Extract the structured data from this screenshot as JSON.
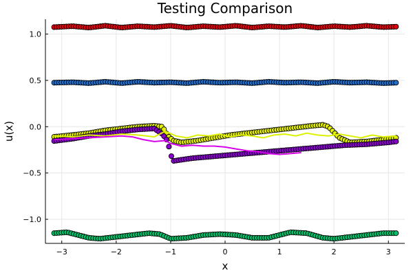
{
  "chart_data": {
    "type": "scatter",
    "title": "Testing Comparison",
    "xlabel": "x",
    "ylabel": "u(x)",
    "xlim": [
      -3.3,
      3.3
    ],
    "ylim": [
      -1.26,
      1.16
    ],
    "xticks": [
      -3,
      -2,
      -1,
      0,
      1,
      2,
      3
    ],
    "xtick_labels": [
      "−3",
      "−2",
      "−1",
      "0",
      "1",
      "2",
      "3"
    ],
    "yticks": [
      -1.0,
      -0.5,
      0.0,
      0.5,
      1.0
    ],
    "ytick_labels": [
      "−1.0",
      "−0.5",
      "0.0",
      "0.5",
      "1.0"
    ],
    "grid": true,
    "legend": "none",
    "series": [
      {
        "kind": "scatter",
        "color": "#e8000b",
        "x": [
          -3.14,
          -2.8,
          -2.5,
          -2.2,
          -1.9,
          -1.6,
          -1.3,
          -1.0,
          -0.7,
          -0.4,
          -0.1,
          0.2,
          0.5,
          0.8,
          1.1,
          1.4,
          1.7,
          2.0,
          2.3,
          2.6,
          2.9,
          3.14
        ],
        "y": [
          1.075,
          1.085,
          1.07,
          1.09,
          1.07,
          1.085,
          1.075,
          1.09,
          1.07,
          1.085,
          1.075,
          1.09,
          1.07,
          1.085,
          1.075,
          1.09,
          1.07,
          1.085,
          1.075,
          1.09,
          1.075,
          1.08
        ]
      },
      {
        "kind": "scatter",
        "color": "#1f6fd1",
        "x": [
          -3.14,
          -2.8,
          -2.5,
          -2.2,
          -1.9,
          -1.6,
          -1.3,
          -1.0,
          -0.7,
          -0.4,
          -0.1,
          0.2,
          0.5,
          0.8,
          1.1,
          1.4,
          1.7,
          2.0,
          2.3,
          2.6,
          2.9,
          3.14
        ],
        "y": [
          0.475,
          0.48,
          0.47,
          0.485,
          0.47,
          0.485,
          0.475,
          0.48,
          0.47,
          0.485,
          0.475,
          0.48,
          0.47,
          0.485,
          0.475,
          0.48,
          0.47,
          0.485,
          0.475,
          0.48,
          0.47,
          0.475
        ]
      },
      {
        "kind": "scatter",
        "color": "#e5f000",
        "x": [
          -3.14,
          -2.8,
          -2.5,
          -2.2,
          -1.9,
          -1.6,
          -1.3,
          -1.15,
          -1.05,
          -0.95,
          -0.8,
          -0.5,
          -0.2,
          0.1,
          0.4,
          0.7,
          1.0,
          1.3,
          1.6,
          1.8,
          1.9,
          2.1,
          2.3,
          2.6,
          2.9,
          3.14
        ],
        "y": [
          -0.11,
          -0.09,
          -0.07,
          -0.04,
          -0.02,
          0.0,
          0.01,
          0.0,
          -0.1,
          -0.15,
          -0.17,
          -0.15,
          -0.12,
          -0.09,
          -0.07,
          -0.05,
          -0.03,
          -0.01,
          0.01,
          0.02,
          0.0,
          -0.12,
          -0.17,
          -0.16,
          -0.14,
          -0.12
        ]
      },
      {
        "kind": "scatter",
        "color": "#8b00d1",
        "x": [
          -3.14,
          -2.8,
          -2.5,
          -2.2,
          -1.9,
          -1.6,
          -1.3,
          -1.15,
          -1.05,
          -1.02,
          -1.0,
          -0.95,
          -0.6,
          -0.2,
          0.2,
          0.6,
          1.0,
          1.4,
          1.8,
          2.2,
          2.6,
          3.0,
          3.14
        ],
        "y": [
          -0.155,
          -0.13,
          -0.1,
          -0.08,
          -0.05,
          -0.03,
          -0.02,
          -0.08,
          -0.16,
          -0.25,
          -0.3,
          -0.37,
          -0.34,
          -0.32,
          -0.3,
          -0.28,
          -0.26,
          -0.24,
          -0.22,
          -0.2,
          -0.19,
          -0.17,
          -0.16
        ]
      },
      {
        "kind": "scatter",
        "color": "#00c36a",
        "x": [
          -3.14,
          -2.9,
          -2.7,
          -2.5,
          -2.3,
          -2.0,
          -1.7,
          -1.4,
          -1.2,
          -1.0,
          -0.7,
          -0.4,
          -0.1,
          0.2,
          0.5,
          0.8,
          1.0,
          1.2,
          1.5,
          1.8,
          2.0,
          2.3,
          2.6,
          2.9,
          3.14
        ],
        "y": [
          -1.15,
          -1.14,
          -1.17,
          -1.2,
          -1.21,
          -1.19,
          -1.17,
          -1.15,
          -1.16,
          -1.21,
          -1.2,
          -1.17,
          -1.16,
          -1.17,
          -1.2,
          -1.2,
          -1.17,
          -1.14,
          -1.15,
          -1.2,
          -1.21,
          -1.19,
          -1.17,
          -1.15,
          -1.15
        ]
      },
      {
        "kind": "line",
        "color": "#dcf000",
        "x": [
          -3.14,
          -2.8,
          -2.5,
          -2.2,
          -1.9,
          -1.6,
          -1.3,
          -1.1,
          -0.9,
          -0.7,
          -0.5,
          -0.3,
          -0.1,
          0.1,
          0.3,
          0.5,
          0.7,
          0.9,
          1.1,
          1.3,
          1.5,
          1.7,
          1.9,
          2.1,
          2.3,
          2.5,
          2.7,
          2.9,
          3.14
        ],
        "y": [
          -0.1,
          -0.11,
          -0.09,
          -0.1,
          -0.08,
          -0.09,
          -0.11,
          -0.05,
          -0.1,
          -0.12,
          -0.09,
          -0.1,
          -0.08,
          -0.11,
          -0.09,
          -0.1,
          -0.12,
          -0.09,
          -0.08,
          -0.1,
          -0.07,
          -0.09,
          -0.1,
          -0.08,
          -0.1,
          -0.12,
          -0.09,
          -0.11,
          -0.1
        ]
      },
      {
        "kind": "line",
        "color": "#d400e8",
        "x": [
          -3.14,
          -2.8,
          -2.5,
          -2.2,
          -1.9,
          -1.7,
          -1.5,
          -1.3,
          -1.1,
          -1.0,
          -0.8,
          -0.6,
          -0.4,
          -0.2,
          0.0,
          0.2,
          0.4,
          0.6,
          0.8,
          1.0,
          1.2,
          1.4
        ],
        "y": [
          -0.14,
          -0.13,
          -0.12,
          -0.11,
          -0.1,
          -0.11,
          -0.14,
          -0.16,
          -0.15,
          -0.18,
          -0.21,
          -0.2,
          -0.21,
          -0.21,
          -0.22,
          -0.24,
          -0.26,
          -0.27,
          -0.29,
          -0.3,
          -0.29,
          -0.28
        ]
      }
    ]
  }
}
